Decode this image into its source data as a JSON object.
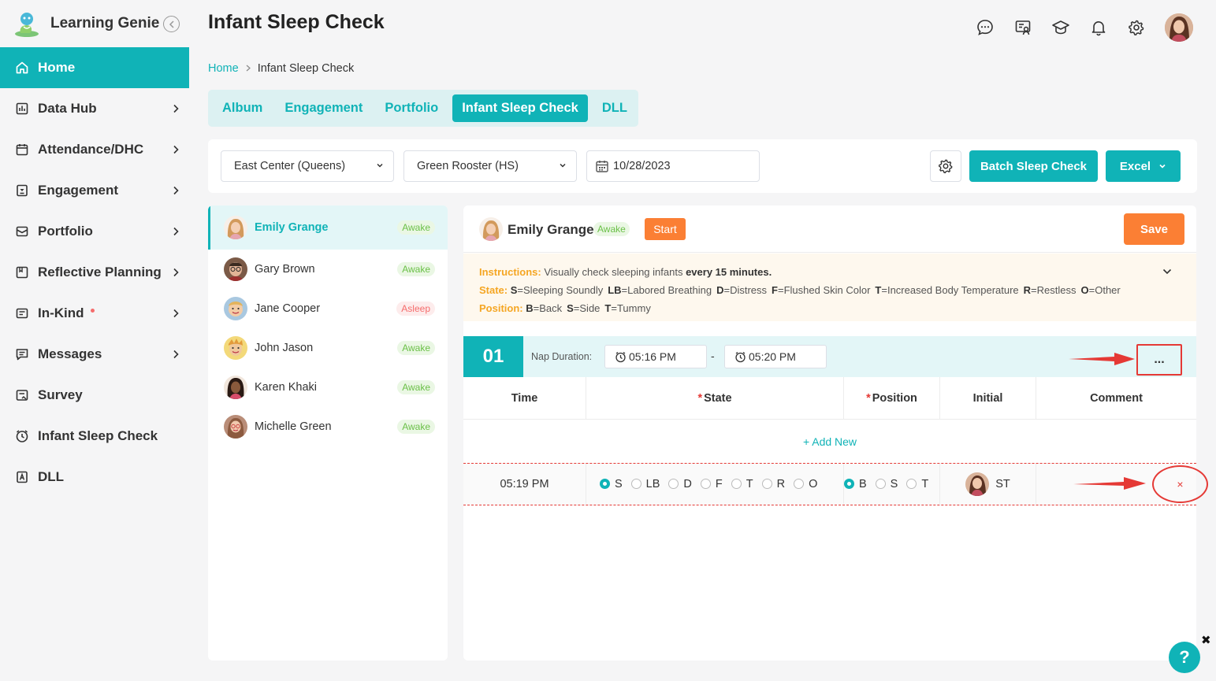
{
  "app": {
    "brand": "Learning Genie"
  },
  "sidebar": {
    "items": [
      {
        "label": "Home",
        "icon": "home-icon",
        "active": true,
        "chevron": false
      },
      {
        "label": "Data Hub",
        "icon": "data-hub-icon",
        "chevron": true
      },
      {
        "label": "Attendance/DHC",
        "icon": "calendar-icon",
        "chevron": true
      },
      {
        "label": "Engagement",
        "icon": "engagement-icon",
        "chevron": true
      },
      {
        "label": "Portfolio",
        "icon": "portfolio-icon",
        "chevron": true
      },
      {
        "label": "Reflective Planning",
        "icon": "planning-icon",
        "chevron": true
      },
      {
        "label": "In-Kind",
        "icon": "in-kind-icon",
        "chevron": true,
        "dot": true
      },
      {
        "label": "Messages",
        "icon": "messages-icon",
        "chevron": true
      },
      {
        "label": "Survey",
        "icon": "survey-icon",
        "chevron": false
      },
      {
        "label": "Infant Sleep Check",
        "icon": "clock-icon",
        "chevron": false
      },
      {
        "label": "DLL",
        "icon": "dll-icon",
        "chevron": false
      }
    ]
  },
  "header": {
    "title": "Infant Sleep Check"
  },
  "breadcrumb": {
    "home": "Home",
    "current": "Infant Sleep Check"
  },
  "tabs": [
    "Album",
    "Engagement",
    "Portfolio",
    "Infant Sleep Check",
    "DLL"
  ],
  "filters": {
    "center": "East Center (Queens)",
    "class": "Green Rooster (HS)",
    "date": "10/28/2023",
    "batch_label": "Batch Sleep Check",
    "excel_label": "Excel"
  },
  "children": [
    {
      "name": "Emily Grange",
      "status": "Awake",
      "active": true
    },
    {
      "name": "Gary Brown",
      "status": "Awake"
    },
    {
      "name": "Jane Cooper",
      "status": "Asleep"
    },
    {
      "name": "John Jason",
      "status": "Awake"
    },
    {
      "name": "Karen Khaki",
      "status": "Awake"
    },
    {
      "name": "Michelle Green",
      "status": "Awake"
    }
  ],
  "check": {
    "child_name": "Emily Grange",
    "status": "Awake",
    "start_label": "Start",
    "save_label": "Save",
    "instructions": {
      "label": "Instructions:",
      "text": "Visually check sleeping infants",
      "emphasis": "every 15 minutes.",
      "state_label": "State:",
      "states": [
        {
          "code": "S",
          "desc": "=Sleeping Soundly"
        },
        {
          "code": "LB",
          "desc": "=Labored Breathing"
        },
        {
          "code": "D",
          "desc": "=Distress"
        },
        {
          "code": "F",
          "desc": "=Flushed Skin Color"
        },
        {
          "code": "T",
          "desc": "=Increased Body Temperature"
        },
        {
          "code": "R",
          "desc": "=Restless"
        },
        {
          "code": "O",
          "desc": "=Other"
        }
      ],
      "position_label": "Position:",
      "positions": [
        {
          "code": "B",
          "desc": "=Back"
        },
        {
          "code": "S",
          "desc": "=Side"
        },
        {
          "code": "T",
          "desc": "=Tummy"
        }
      ]
    },
    "nap": {
      "number": "01",
      "duration_label": "Nap Duration:",
      "start": "05:16 PM",
      "dash": "-",
      "end": "05:20 PM",
      "more": "..."
    },
    "table": {
      "headers": {
        "time": "Time",
        "state": "State",
        "position": "Position",
        "initial": "Initial",
        "comment": "Comment"
      },
      "required_mark": "*",
      "add_new": "+ Add New",
      "row": {
        "time": "05:19 PM",
        "states": [
          "S",
          "LB",
          "D",
          "F",
          "T",
          "R",
          "O"
        ],
        "state_selected": "S",
        "positions": [
          "B",
          "S",
          "T"
        ],
        "position_selected": "B",
        "initial": "ST",
        "remove": "×"
      }
    }
  },
  "help": {
    "label": "?",
    "close": "✖"
  },
  "colors": {
    "primary": "#10b3b7",
    "accent": "#fb7f34",
    "alert": "#e53935"
  }
}
